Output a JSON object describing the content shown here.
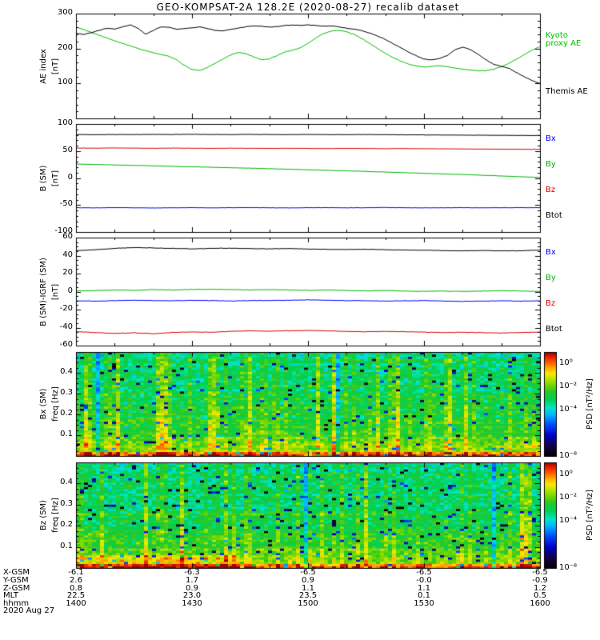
{
  "title": "GEO-KOMPSAT-2A 128.2E (2020-08-27) recalib dataset",
  "time_axis": {
    "label": "hhmm",
    "tick_labels": [
      "1400",
      "1430",
      "1500",
      "1530",
      "1600"
    ],
    "tick_minutes": [
      0,
      30,
      60,
      90,
      120
    ],
    "minor_step_minutes": 10
  },
  "psd_colormap": [
    [
      -8,
      "#000000"
    ],
    [
      -7.2,
      "#14003c"
    ],
    [
      -6.2,
      "#0000c8"
    ],
    [
      -5.2,
      "#0050ff"
    ],
    [
      -4.4,
      "#00b4ff"
    ],
    [
      -3.8,
      "#00e6c8"
    ],
    [
      -3.1,
      "#00d050"
    ],
    [
      -2.4,
      "#28c828"
    ],
    [
      -1.8,
      "#78d800"
    ],
    [
      -1.2,
      "#c8e600"
    ],
    [
      -0.8,
      "#ffe600"
    ],
    [
      -0.3,
      "#ffa000"
    ],
    [
      0.2,
      "#ff5000"
    ],
    [
      0.7,
      "#dc1400"
    ],
    [
      1,
      "#960000"
    ]
  ],
  "chart_data": [
    {
      "type": "line",
      "panel": "ae-index",
      "ylabel_lines": [
        "AE index",
        "[nT]"
      ],
      "ylim": [
        0,
        300
      ],
      "yticks": [
        100,
        200,
        300
      ],
      "ytick_labels": [
        "100",
        "200",
        "300"
      ],
      "series": [
        {
          "name": "Kyoto proxy AE",
          "legend_lines": [
            "Kyoto",
            "proxy AE"
          ],
          "color": "#00c000",
          "dt_min": 2,
          "values": [
            262,
            254,
            246,
            238,
            230,
            222,
            215,
            208,
            200,
            194,
            188,
            183,
            178,
            168,
            152,
            140,
            137,
            146,
            158,
            170,
            182,
            189,
            185,
            176,
            168,
            170,
            180,
            190,
            195,
            202,
            215,
            230,
            243,
            250,
            252,
            248,
            240,
            228,
            214,
            200,
            186,
            174,
            164,
            156,
            150,
            147,
            149,
            151,
            148,
            144,
            141,
            138,
            136,
            137,
            141,
            148,
            158,
            170,
            183,
            196,
            206
          ]
        },
        {
          "name": "Themis AE",
          "legend_lines": [
            "Themis AE"
          ],
          "color": "#000000",
          "dt_min": 2,
          "values": [
            244,
            240,
            246,
            252,
            258,
            256,
            262,
            268,
            258,
            241,
            252,
            262,
            261,
            255,
            257,
            259,
            262,
            257,
            252,
            251,
            255,
            259,
            262,
            265,
            264,
            261,
            263,
            266,
            268,
            266,
            268,
            266,
            264,
            265,
            262,
            258,
            256,
            251,
            244,
            236,
            226,
            214,
            202,
            190,
            179,
            170,
            167,
            172,
            180,
            196,
            204,
            197,
            183,
            168,
            155,
            149,
            143,
            131,
            119,
            108,
            100
          ]
        }
      ]
    },
    {
      "type": "line",
      "panel": "b-sm",
      "ylabel_lines": [
        "B (SM)",
        "[nT]"
      ],
      "ylim": [
        -100,
        100
      ],
      "yticks": [
        -100,
        -50,
        0,
        50,
        100
      ],
      "ytick_labels": [
        "-100",
        "-50",
        "0",
        "50",
        "100"
      ],
      "series": [
        {
          "name": "Bx",
          "legend_lines": [
            "Bx"
          ],
          "color": "#0000ff",
          "dt_min": 5,
          "values": [
            -55.0,
            -55.3,
            -54.8,
            -55.2,
            -55.5,
            -55.1,
            -54.9,
            -55.3,
            -55.0,
            -54.7,
            -55.1,
            -55.4,
            -55.0,
            -54.8,
            -55.2,
            -55.0,
            -54.6,
            -55.0,
            -55.3,
            -55.1,
            -54.9,
            -55.2,
            -55.0,
            -54.8,
            -55.0
          ]
        },
        {
          "name": "By",
          "legend_lines": [
            "By"
          ],
          "color": "#00b400",
          "dt_min": 5,
          "values": [
            26.0,
            25.0,
            24.2,
            23.3,
            22.5,
            21.6,
            20.8,
            19.9,
            19.0,
            18.1,
            17.2,
            16.2,
            15.2,
            14.2,
            13.2,
            12.1,
            11.0,
            9.9,
            8.8,
            7.6,
            6.4,
            5.1,
            3.8,
            2.4,
            1.0
          ]
        },
        {
          "name": "Bz",
          "legend_lines": [
            "Bz"
          ],
          "color": "#dc0000",
          "dt_min": 5,
          "values": [
            55.5,
            55.2,
            55.6,
            55.3,
            55.0,
            55.4,
            55.1,
            54.8,
            55.2,
            55.0,
            54.7,
            55.0,
            54.8,
            54.5,
            54.8,
            54.6,
            54.3,
            54.5,
            54.2,
            54.0,
            53.8,
            53.6,
            53.4,
            53.2,
            53.0
          ]
        },
        {
          "name": "Btot",
          "legend_lines": [
            "Btot"
          ],
          "color": "#000000",
          "dt_min": 5,
          "values": [
            80.5,
            80.2,
            80.6,
            80.4,
            80.8,
            80.5,
            80.9,
            80.6,
            80.4,
            80.7,
            80.5,
            80.3,
            80.6,
            80.4,
            80.2,
            80.5,
            80.3,
            80.0,
            79.8,
            79.6,
            79.4,
            79.2,
            79.0,
            78.8,
            78.6
          ]
        }
      ]
    },
    {
      "type": "line",
      "panel": "b-sm-minus-igrf",
      "ylabel_lines": [
        "B (SM)-IGRF (SM)",
        "[nT]"
      ],
      "ylim": [
        -60,
        60
      ],
      "yticks": [
        -60,
        -40,
        -20,
        0,
        20,
        40,
        60
      ],
      "ytick_labels": [
        "-60",
        "-40",
        "-20",
        "0",
        "20",
        "40",
        "60"
      ],
      "series": [
        {
          "name": "Bx",
          "legend_lines": [
            "Bx"
          ],
          "color": "#0000ff",
          "dt_min": 5,
          "values": [
            -10.2,
            -10.6,
            -10.0,
            -9.6,
            -10.0,
            -10.2,
            -9.8,
            -10.0,
            -10.4,
            -10.0,
            -9.8,
            -9.6,
            -9.2,
            -9.6,
            -10.0,
            -10.2,
            -10.5,
            -10.2,
            -10.0,
            -10.4,
            -10.8,
            -10.5,
            -10.2,
            -10.5,
            -10.3
          ]
        },
        {
          "name": "By",
          "legend_lines": [
            "By"
          ],
          "color": "#00b400",
          "dt_min": 5,
          "values": [
            0.8,
            1.2,
            1.8,
            1.4,
            2.2,
            1.8,
            2.4,
            2.6,
            2.2,
            1.8,
            2.2,
            1.8,
            1.4,
            1.8,
            1.2,
            0.8,
            1.2,
            0.6,
            0.2,
            0.6,
            0.2,
            0.6,
            1.0,
            0.6,
            0.2
          ]
        },
        {
          "name": "Bz",
          "legend_lines": [
            "Bz"
          ],
          "color": "#dc0000",
          "dt_min": 5,
          "values": [
            -44.5,
            -45.5,
            -46.5,
            -45.8,
            -46.8,
            -45.5,
            -44.8,
            -45.2,
            -44.2,
            -43.6,
            -44.0,
            -43.5,
            -43.2,
            -43.6,
            -44.2,
            -44.6,
            -44.2,
            -44.6,
            -45.0,
            -45.5,
            -45.2,
            -45.6,
            -46.0,
            -45.5,
            -45.0
          ]
        },
        {
          "name": "Btot",
          "legend_lines": [
            "Btot"
          ],
          "color": "#000000",
          "dt_min": 5,
          "values": [
            45.5,
            46.5,
            48.0,
            49.0,
            48.5,
            48.0,
            47.5,
            48.0,
            48.2,
            47.8,
            47.5,
            47.8,
            47.3,
            47.0,
            46.8,
            47.0,
            46.5,
            46.2,
            46.0,
            45.6,
            45.3,
            45.6,
            45.2,
            45.5,
            46.0
          ]
        }
      ]
    },
    {
      "type": "spectrogram",
      "panel": "bx-sm-psd",
      "ylabel_lines": [
        "Bx (SM)",
        "freq [Hz]"
      ],
      "ylim": [
        0,
        0.5
      ],
      "yticks": [
        0.1,
        0.2,
        0.3,
        0.4
      ],
      "ytick_labels": [
        "0.1",
        "0.2",
        "0.3",
        "0.4"
      ],
      "colorbar": {
        "label": "PSD [nT²/Hz]",
        "log10_range": [
          1,
          -8
        ],
        "tick_log10": [
          0,
          -2,
          -4,
          -8
        ],
        "tick_labels": [
          "10⁰",
          "10⁻²",
          "10⁻⁴",
          "10⁻⁸"
        ]
      },
      "texture": {
        "seed": 42,
        "cols": 116,
        "rows": 48,
        "noise_sigma": 0.85,
        "base_log10_at_f": [
          [
            0.005,
            0.5
          ],
          [
            0.012,
            0.1
          ],
          [
            0.025,
            -1.6
          ],
          [
            0.1,
            -2.3
          ],
          [
            0.3,
            -3.0
          ],
          [
            0.5,
            -3.4
          ]
        ],
        "stripe_hi_prob": 0.13,
        "stripe_mid_prob": 0.22,
        "dip_prob": 0.045,
        "lowfreq_left_boost": 0
      }
    },
    {
      "type": "spectrogram",
      "panel": "bz-sm-psd",
      "ylabel_lines": [
        "Bz (SM)",
        "freq [Hz]"
      ],
      "ylim": [
        0,
        0.5
      ],
      "yticks": [
        0.1,
        0.2,
        0.3,
        0.4
      ],
      "ytick_labels": [
        "0.1",
        "0.2",
        "0.3",
        "0.4"
      ],
      "colorbar": {
        "label": "PSD [nT²/Hz]",
        "log10_range": [
          1,
          -8
        ],
        "tick_log10": [
          0,
          -2,
          -4,
          -8
        ],
        "tick_labels": [
          "10⁰",
          "10⁻²",
          "10⁻⁴",
          "10⁻⁸"
        ]
      },
      "texture": {
        "seed": 1337,
        "cols": 116,
        "rows": 48,
        "noise_sigma": 0.85,
        "base_log10_at_f": [
          [
            0.005,
            0.5
          ],
          [
            0.012,
            0.1
          ],
          [
            0.025,
            -1.6
          ],
          [
            0.1,
            -2.3
          ],
          [
            0.3,
            -3.0
          ],
          [
            0.5,
            -3.4
          ]
        ],
        "stripe_hi_prob": 0.08,
        "stripe_mid_prob": 0.16,
        "dip_prob": 0.05,
        "lowfreq_left_boost": 0.8
      }
    }
  ],
  "ephemeris": {
    "rows": [
      {
        "label": "X-GSM",
        "values": [
          "-6.1",
          "-6.3",
          "-6.5",
          "-6.5",
          "-6.5"
        ]
      },
      {
        "label": "Y-GSM",
        "values": [
          "2.6",
          "1.7",
          "0.9",
          "-0.0",
          "-0.9"
        ]
      },
      {
        "label": "Z-GSM",
        "values": [
          "0.8",
          "0.9",
          "1.1",
          "1.1",
          "1.2"
        ]
      },
      {
        "label": "MLT",
        "values": [
          "22.5",
          "23.0",
          "23.5",
          "0.1",
          "0.5"
        ]
      },
      {
        "label": "hhmm",
        "values": [
          "1400",
          "1430",
          "1500",
          "1530",
          "1600"
        ]
      }
    ],
    "date": "2020 Aug 27"
  }
}
